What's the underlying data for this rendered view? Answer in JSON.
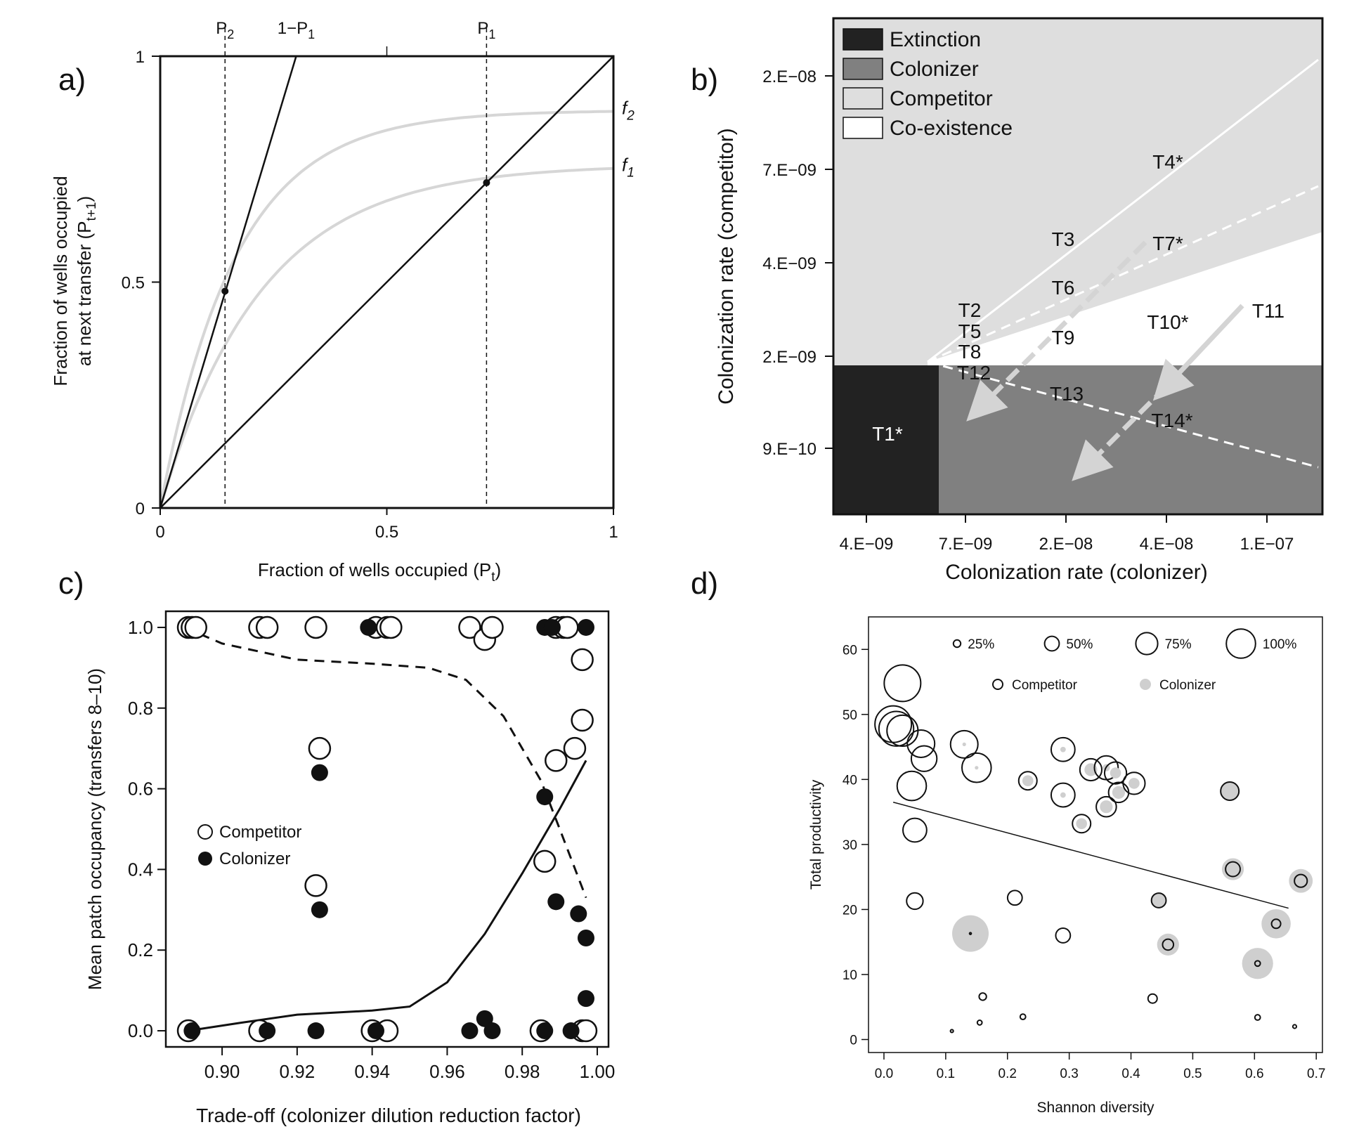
{
  "chart_data": [
    {
      "panel": "a)",
      "type": "line",
      "xlabel": "Fraction of wells occupied (P",
      "xlabel_sub": "t",
      "xlabel_close": ")",
      "ylabel_line1": "Fraction of wells occupied",
      "ylabel_line2": "at next transfer  (P",
      "ylabel_sub": "t+1",
      "ylabel_close": ")",
      "xlim": [
        0,
        1
      ],
      "ylim": [
        0,
        1
      ],
      "x_ticks": [
        {
          "v": 0,
          "label": "0"
        },
        {
          "v": 0.5,
          "label": "0.5"
        },
        {
          "v": 1,
          "label": "1"
        }
      ],
      "y_ticks": [
        {
          "v": 0,
          "label": "0"
        },
        {
          "v": 0.5,
          "label": "0.5"
        },
        {
          "v": 1,
          "label": "1"
        }
      ],
      "top_labels": [
        {
          "v": 0.143,
          "main": "P",
          "sub": "2"
        },
        {
          "v": 0.3,
          "main": "1−P",
          "sub": "1"
        },
        {
          "v": 0.72,
          "main": "P",
          "sub": "1"
        }
      ],
      "vlines_dashed": [
        0.143,
        0.72
      ],
      "lines": [
        {
          "name": "identity",
          "points": [
            [
              0,
              0
            ],
            [
              1,
              1
            ]
          ]
        },
        {
          "name": "1-P1",
          "points": [
            [
              0,
              0
            ],
            [
              0.3,
              1
            ]
          ]
        }
      ],
      "curves": [
        {
          "label": "f",
          "sub": "2",
          "asymptote": 0.88,
          "rate": 6.0
        },
        {
          "label": "f",
          "sub": "1",
          "asymptote": 0.76,
          "rate": 4.5
        }
      ],
      "points": [
        [
          0.143,
          0.48
        ],
        [
          0.72,
          0.72
        ]
      ]
    },
    {
      "panel": "b)",
      "type": "heatmap",
      "xlabel": "Colonization rate (colonizer)",
      "ylabel": "Colonization rate (competitor)",
      "x_ticks": [
        "4.E−09",
        "7.E−09",
        "2.E−08",
        "4.E−08",
        "1.E−07"
      ],
      "y_ticks": [
        "9.E−10",
        "2.E−09",
        "4.E−09",
        "7.E−09",
        "2.E−08"
      ],
      "legend": [
        {
          "label": "Extinction",
          "color": "#222222"
        },
        {
          "label": "Colonizer",
          "color": "#808080"
        },
        {
          "label": "Competitor",
          "color": "#dedede"
        },
        {
          "label": "Co-existence",
          "color": "#ffffff"
        }
      ],
      "treatments": [
        "T1*",
        "T2",
        "T3",
        "T4*",
        "T5",
        "T6",
        "T7*",
        "T8",
        "T9",
        "T10*",
        "T11",
        "T12",
        "T13",
        "T14*"
      ]
    },
    {
      "panel": "c)",
      "type": "scatter",
      "xlabel": "Trade-off (colonizer dilution reduction factor)",
      "ylabel": "Mean patch occupancy (transfers 8–10)",
      "xlim": [
        0.885,
        1.003
      ],
      "ylim": [
        -0.04,
        1.04
      ],
      "x_ticks": [
        "0.90",
        "0.92",
        "0.94",
        "0.96",
        "0.98",
        "1.00"
      ],
      "y_ticks": [
        "0.0",
        "0.2",
        "0.4",
        "0.6",
        "0.8",
        "1.0"
      ],
      "legend": [
        "Competitor",
        "Colonizer"
      ],
      "series": [
        {
          "name": "Competitor",
          "points": [
            [
              0.891,
              1.0
            ],
            [
              0.892,
              1.0
            ],
            [
              0.893,
              1.0
            ],
            [
              0.91,
              1.0
            ],
            [
              0.912,
              1.0
            ],
            [
              0.925,
              1.0
            ],
            [
              0.926,
              0.7
            ],
            [
              0.925,
              0.36
            ],
            [
              0.941,
              1.0
            ],
            [
              0.944,
              1.0
            ],
            [
              0.945,
              1.0
            ],
            [
              0.966,
              1.0
            ],
            [
              0.97,
              0.97
            ],
            [
              0.972,
              1.0
            ],
            [
              0.989,
              1.0
            ],
            [
              0.991,
              1.0
            ],
            [
              0.992,
              1.0
            ],
            [
              0.996,
              0.92
            ],
            [
              0.996,
              0.77
            ],
            [
              0.994,
              0.7
            ],
            [
              0.989,
              0.67
            ],
            [
              0.986,
              0.42
            ],
            [
              0.891,
              0.0
            ],
            [
              0.91,
              0.0
            ],
            [
              0.94,
              0.0
            ],
            [
              0.944,
              0.0
            ],
            [
              0.985,
              0.0
            ],
            [
              0.996,
              0.0
            ],
            [
              0.997,
              0.0
            ]
          ]
        },
        {
          "name": "Colonizer",
          "points": [
            [
              0.892,
              0.0
            ],
            [
              0.912,
              0.0
            ],
            [
              0.925,
              0.0
            ],
            [
              0.941,
              0.0
            ],
            [
              0.966,
              0.0
            ],
            [
              0.97,
              0.03
            ],
            [
              0.972,
              0.0
            ],
            [
              0.986,
              0.0
            ],
            [
              0.993,
              0.0
            ],
            [
              0.939,
              1.0
            ],
            [
              0.986,
              1.0
            ],
            [
              0.988,
              1.0
            ],
            [
              0.997,
              1.0
            ],
            [
              0.926,
              0.64
            ],
            [
              0.926,
              0.3
            ],
            [
              0.986,
              0.58
            ],
            [
              0.989,
              0.32
            ],
            [
              0.995,
              0.29
            ],
            [
              0.997,
              0.23
            ],
            [
              0.997,
              0.08
            ]
          ]
        }
      ],
      "competitor_trend": [
        [
          0.89,
          1.0
        ],
        [
          0.9,
          0.96
        ],
        [
          0.92,
          0.92
        ],
        [
          0.94,
          0.91
        ],
        [
          0.955,
          0.9
        ],
        [
          0.965,
          0.87
        ],
        [
          0.975,
          0.78
        ],
        [
          0.985,
          0.62
        ],
        [
          0.99,
          0.5
        ],
        [
          0.997,
          0.33
        ]
      ],
      "colonizer_trend": [
        [
          0.891,
          0.0
        ],
        [
          0.905,
          0.02
        ],
        [
          0.92,
          0.04
        ],
        [
          0.94,
          0.05
        ],
        [
          0.95,
          0.06
        ],
        [
          0.96,
          0.12
        ],
        [
          0.97,
          0.24
        ],
        [
          0.98,
          0.39
        ],
        [
          0.99,
          0.55
        ],
        [
          0.997,
          0.67
        ]
      ]
    },
    {
      "panel": "d)",
      "type": "scatter",
      "xlabel": "Shannon diversity",
      "ylabel": "Total productivity",
      "xlim": [
        -0.025,
        0.71
      ],
      "ylim": [
        -2,
        65
      ],
      "x_ticks": [
        "0.0",
        "0.1",
        "0.2",
        "0.3",
        "0.4",
        "0.5",
        "0.6",
        "0.7"
      ],
      "y_ticks": [
        "0",
        "10",
        "20",
        "30",
        "40",
        "50",
        "60"
      ],
      "size_legend": [
        "25%",
        "50%",
        "75%",
        "100%"
      ],
      "legend": [
        "Competitor",
        "Colonizer"
      ],
      "trend": [
        [
          0.015,
          36.5
        ],
        [
          0.655,
          20.2
        ]
      ],
      "points": [
        {
          "x": 0.03,
          "y": 54.8,
          "comp": 1.0,
          "col": 0.0
        },
        {
          "x": 0.015,
          "y": 48.5,
          "comp": 1.0,
          "col": 0.0
        },
        {
          "x": 0.02,
          "y": 47.8,
          "comp": 0.95,
          "col": 0.0
        },
        {
          "x": 0.03,
          "y": 47.5,
          "comp": 0.85,
          "col": 0.0
        },
        {
          "x": 0.06,
          "y": 45.5,
          "comp": 0.75,
          "col": 0.0
        },
        {
          "x": 0.065,
          "y": 43.2,
          "comp": 0.7,
          "col": 0.0
        },
        {
          "x": 0.045,
          "y": 39.0,
          "comp": 0.8,
          "col": 0.0
        },
        {
          "x": 0.05,
          "y": 32.2,
          "comp": 0.65,
          "col": 0.0
        },
        {
          "x": 0.05,
          "y": 21.3,
          "comp": 0.45,
          "col": 0.0
        },
        {
          "x": 0.13,
          "y": 45.4,
          "comp": 0.75,
          "col": 0.1
        },
        {
          "x": 0.15,
          "y": 41.8,
          "comp": 0.8,
          "col": 0.1
        },
        {
          "x": 0.233,
          "y": 39.8,
          "comp": 0.5,
          "col": 0.3
        },
        {
          "x": 0.29,
          "y": 44.6,
          "comp": 0.65,
          "col": 0.15
        },
        {
          "x": 0.29,
          "y": 37.6,
          "comp": 0.65,
          "col": 0.15
        },
        {
          "x": 0.32,
          "y": 33.2,
          "comp": 0.5,
          "col": 0.3
        },
        {
          "x": 0.335,
          "y": 41.5,
          "comp": 0.6,
          "col": 0.35
        },
        {
          "x": 0.36,
          "y": 41.8,
          "comp": 0.65,
          "col": 0.2
        },
        {
          "x": 0.375,
          "y": 41.0,
          "comp": 0.6,
          "col": 0.3
        },
        {
          "x": 0.38,
          "y": 38.0,
          "comp": 0.55,
          "col": 0.35
        },
        {
          "x": 0.36,
          "y": 35.8,
          "comp": 0.55,
          "col": 0.35
        },
        {
          "x": 0.405,
          "y": 39.4,
          "comp": 0.6,
          "col": 0.3
        },
        {
          "x": 0.56,
          "y": 38.2,
          "comp": 0.5,
          "col": 0.5
        },
        {
          "x": 0.212,
          "y": 21.8,
          "comp": 0.4,
          "col": 0.0
        },
        {
          "x": 0.445,
          "y": 21.4,
          "comp": 0.4,
          "col": 0.4
        },
        {
          "x": 0.565,
          "y": 26.2,
          "comp": 0.4,
          "col": 0.6
        },
        {
          "x": 0.675,
          "y": 24.4,
          "comp": 0.35,
          "col": 0.65
        },
        {
          "x": 0.635,
          "y": 17.8,
          "comp": 0.25,
          "col": 0.8
        },
        {
          "x": 0.605,
          "y": 11.7,
          "comp": 0.15,
          "col": 0.85
        },
        {
          "x": 0.46,
          "y": 14.6,
          "comp": 0.3,
          "col": 0.6
        },
        {
          "x": 0.14,
          "y": 16.3,
          "comp": 0.05,
          "col": 1.0
        },
        {
          "x": 0.29,
          "y": 16.0,
          "comp": 0.4,
          "col": 0.0
        },
        {
          "x": 0.16,
          "y": 6.6,
          "comp": 0.2,
          "col": 0.0
        },
        {
          "x": 0.435,
          "y": 6.3,
          "comp": 0.25,
          "col": 0.0
        },
        {
          "x": 0.225,
          "y": 3.5,
          "comp": 0.15,
          "col": 0.0
        },
        {
          "x": 0.605,
          "y": 3.4,
          "comp": 0.15,
          "col": 0.0
        },
        {
          "x": 0.155,
          "y": 2.6,
          "comp": 0.13,
          "col": 0.0
        },
        {
          "x": 0.665,
          "y": 2.0,
          "comp": 0.1,
          "col": 0.0
        },
        {
          "x": 0.11,
          "y": 1.3,
          "comp": 0.08,
          "col": 0.0
        }
      ]
    }
  ]
}
